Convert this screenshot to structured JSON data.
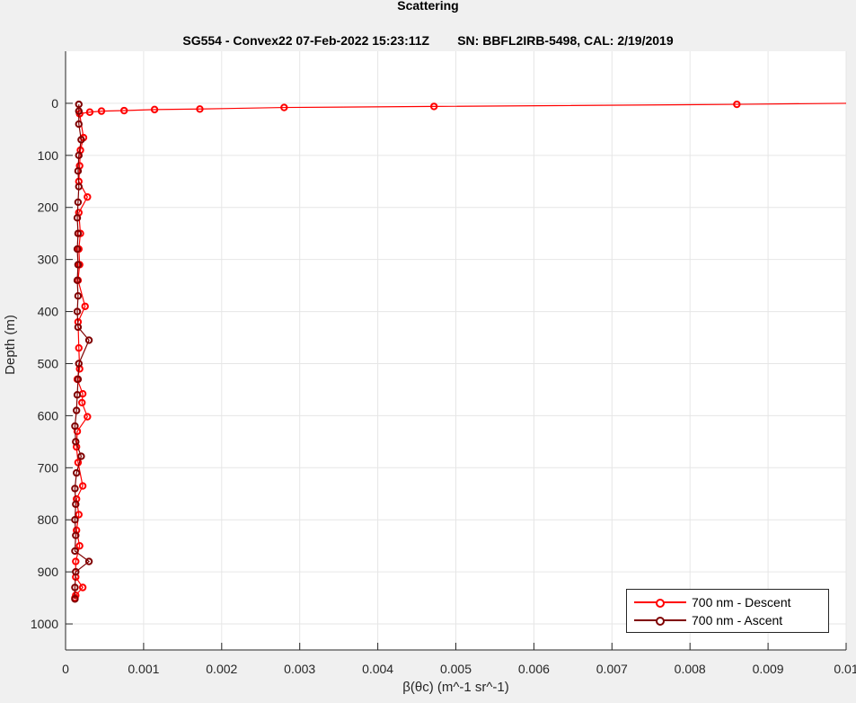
{
  "chart_data": {
    "type": "scatter",
    "title": "Scattering",
    "subtitle_left": "SG554 - Convex22 07-Feb-2022 15:23:11Z",
    "subtitle_right": "SN: BBFL2IRB-5498, CAL: 2/19/2019",
    "xlabel": "β(θc) (m^-1 sr^-1)",
    "ylabel": "Depth (m)",
    "xlim": [
      0,
      0.01
    ],
    "ylim": [
      -100,
      1050
    ],
    "y_reversed": true,
    "grid": true,
    "legend_position": "bottom-right",
    "xticks": [
      "0",
      "0.001",
      "0.002",
      "0.003",
      "0.004",
      "0.005",
      "0.006",
      "0.007",
      "0.008",
      "0.009",
      "0.01"
    ],
    "yticks": [
      "0",
      "100",
      "200",
      "300",
      "400",
      "500",
      "600",
      "700",
      "800",
      "900",
      "1000"
    ],
    "series": [
      {
        "name": "700 nm - Descent",
        "color": "#ff0000",
        "points": [
          [
            0.01,
            0
          ],
          [
            0.0086,
            2
          ],
          [
            0.00472,
            6
          ],
          [
            0.0028,
            8
          ],
          [
            0.00172,
            11
          ],
          [
            0.00114,
            12
          ],
          [
            0.00075,
            14
          ],
          [
            0.00046,
            15
          ],
          [
            0.00031,
            17
          ],
          [
            0.00018,
            20
          ],
          [
            0.00023,
            66
          ],
          [
            0.00019,
            90
          ],
          [
            0.00018,
            120
          ],
          [
            0.00017,
            150
          ],
          [
            0.00028,
            180
          ],
          [
            0.00017,
            210
          ],
          [
            0.00019,
            250
          ],
          [
            0.00017,
            280
          ],
          [
            0.00018,
            310
          ],
          [
            0.00016,
            340
          ],
          [
            0.00025,
            390
          ],
          [
            0.00016,
            420
          ],
          [
            0.00017,
            470
          ],
          [
            0.00018,
            510
          ],
          [
            0.00015,
            530
          ],
          [
            0.00022,
            558
          ],
          [
            0.00021,
            575
          ],
          [
            0.00028,
            602
          ],
          [
            0.00015,
            630
          ],
          [
            0.00014,
            660
          ],
          [
            0.00016,
            690
          ],
          [
            0.00022,
            735
          ],
          [
            0.00014,
            760
          ],
          [
            0.00017,
            790
          ],
          [
            0.00014,
            820
          ],
          [
            0.00018,
            850
          ],
          [
            0.00013,
            880
          ],
          [
            0.00013,
            910
          ],
          [
            0.00022,
            930
          ],
          [
            0.00013,
            945
          ],
          [
            0.00012,
            950
          ]
        ]
      },
      {
        "name": "700 nm - Ascent",
        "color": "#800000",
        "points": [
          [
            0.00012,
            952
          ],
          [
            0.00012,
            930
          ],
          [
            0.00013,
            900
          ],
          [
            0.0003,
            880
          ],
          [
            0.00012,
            860
          ],
          [
            0.00013,
            830
          ],
          [
            0.00012,
            800
          ],
          [
            0.00013,
            770
          ],
          [
            0.00012,
            740
          ],
          [
            0.00014,
            710
          ],
          [
            0.0002,
            678
          ],
          [
            0.00013,
            650
          ],
          [
            0.00012,
            620
          ],
          [
            0.00014,
            590
          ],
          [
            0.00015,
            560
          ],
          [
            0.00016,
            530
          ],
          [
            0.00017,
            500
          ],
          [
            0.0003,
            455
          ],
          [
            0.00016,
            430
          ],
          [
            0.00015,
            400
          ],
          [
            0.00016,
            370
          ],
          [
            0.00015,
            340
          ],
          [
            0.00016,
            310
          ],
          [
            0.00015,
            280
          ],
          [
            0.00016,
            250
          ],
          [
            0.00015,
            220
          ],
          [
            0.00016,
            190
          ],
          [
            0.00017,
            160
          ],
          [
            0.00016,
            130
          ],
          [
            0.00017,
            100
          ],
          [
            0.0002,
            70
          ],
          [
            0.00017,
            40
          ],
          [
            0.00017,
            15
          ],
          [
            0.00017,
            2
          ]
        ]
      }
    ]
  }
}
